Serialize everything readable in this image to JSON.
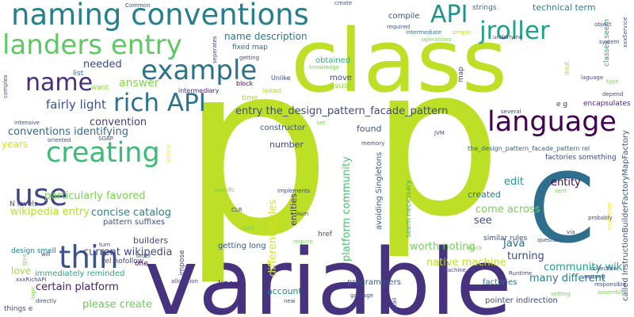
{
  "words": [
    {
      "text": "variable",
      "color": "#46327e"
    },
    {
      "text": "p",
      "color": "#bddf26"
    },
    {
      "text": "p",
      "color": "#bddf26"
    },
    {
      "text": "class",
      "color": "#bddf26"
    },
    {
      "text": "C",
      "color": "#2e6f8e"
    },
    {
      "text": "naming conventions",
      "color": "#277f8e"
    },
    {
      "text": "landers entry",
      "color": "#5ec962"
    },
    {
      "text": "example",
      "color": "#2c728e"
    },
    {
      "text": "name",
      "color": "#472d7b"
    },
    {
      "text": "rich API",
      "color": "#2c728e"
    },
    {
      "text": "creating",
      "color": "#3bbb75"
    },
    {
      "text": "language",
      "color": "#440154"
    },
    {
      "text": "use",
      "color": "#3f4788"
    },
    {
      "text": "thin",
      "color": "#3b528b"
    },
    {
      "text": "API",
      "color": "#21918c"
    },
    {
      "text": "jroller",
      "color": "#1fa088"
    },
    {
      "text": "fairly light",
      "color": "#3b528b"
    },
    {
      "text": "answer",
      "color": "#85d54a"
    },
    {
      "text": "needed",
      "color": "#3e4989"
    },
    {
      "text": "name description",
      "color": "#2a788e"
    },
    {
      "text": "entry the_design_pattern_facade_pattern",
      "color": "#3e4989"
    },
    {
      "text": "conventions identifying",
      "color": "#31688e"
    },
    {
      "text": "convention",
      "color": "#443a83"
    },
    {
      "text": "particularly favored",
      "color": "#7ad151"
    },
    {
      "text": "concise catalog",
      "color": "#25848e"
    },
    {
      "text": "wikipedia entry",
      "color": "#b5de2b"
    },
    {
      "text": "pattern suffixes",
      "color": "#3b528b"
    },
    {
      "text": "current wikipedia",
      "color": "#3e4989"
    },
    {
      "text": "certain platform",
      "color": "#481a6c"
    },
    {
      "text": "immediately reminded",
      "color": "#22a884"
    },
    {
      "text": "please create",
      "color": "#6ccd5a"
    },
    {
      "text": "worth noting",
      "color": "#73d056"
    },
    {
      "text": "community wiki",
      "color": "#1fa188"
    },
    {
      "text": "many different",
      "color": "#2a788e"
    },
    {
      "text": "native machine",
      "color": "#c2df23"
    },
    {
      "text": "platform community",
      "color": "#4ac16d"
    },
    {
      "text": "different styles",
      "color": "#d8e219"
    },
    {
      "text": "come across",
      "color": "#7ad151"
    },
    {
      "text": "turning",
      "color": "#3f4788"
    },
    {
      "text": "Java",
      "color": "#31688e"
    },
    {
      "text": "edit",
      "color": "#1e9b8a"
    },
    {
      "text": "entity",
      "color": "#440154"
    },
    {
      "text": "entities",
      "color": "#482878"
    },
    {
      "text": "see",
      "color": "#3b528b"
    },
    {
      "text": "created",
      "color": "#2a788e"
    },
    {
      "text": "found",
      "color": "#38598c"
    },
    {
      "text": "constructor",
      "color": "#3b528b"
    },
    {
      "text": "number",
      "color": "#3f4788"
    },
    {
      "text": "builders",
      "color": "#3e4989"
    },
    {
      "text": "know",
      "color": "#482878"
    },
    {
      "text": "love",
      "color": "#a8db34"
    },
    {
      "text": "years",
      "color": "#d8e219"
    },
    {
      "text": "account",
      "color": "#277f8e"
    },
    {
      "text": "getting long",
      "color": "#38598c"
    },
    {
      "text": "technical term",
      "color": "#27808e"
    },
    {
      "text": "compile",
      "color": "#3b528b"
    },
    {
      "text": "strings",
      "color": "#2e6e8e"
    },
    {
      "text": "obtained",
      "color": "#2db27d"
    },
    {
      "text": "move",
      "color": "#3f4788"
    },
    {
      "text": "usual",
      "color": "#8fd744"
    },
    {
      "text": "fixed map",
      "color": "#31688e"
    },
    {
      "text": "called InstructionBuilderFactoryMapFactory",
      "color": "#39558c"
    },
    {
      "text": "the_design_pattern_facade_pattern rel",
      "color": "#33638d"
    },
    {
      "text": "factories something",
      "color": "#3e4a89"
    },
    {
      "text": "seem necessary",
      "color": "#35b779"
    },
    {
      "text": "avoiding Singletons",
      "color": "#38598c"
    },
    {
      "text": "similar rules",
      "color": "#3e4989"
    },
    {
      "text": "factories",
      "color": "#2c728e"
    },
    {
      "text": "programmers",
      "color": "#38598c"
    },
    {
      "text": "pointer indirection",
      "color": "#3e4989"
    },
    {
      "text": "design smell",
      "color": "#277f8e"
    },
    {
      "text": "rel nofollow",
      "color": "#3e4989"
    },
    {
      "text": "href",
      "color": "#3e4989"
    },
    {
      "text": "impose",
      "color": "#3e4989"
    },
    {
      "text": "N levels",
      "color": "#3b528b"
    },
    {
      "text": "e g",
      "color": "#472d7b"
    },
    {
      "text": "encapsulates",
      "color": "#482878"
    },
    {
      "text": "classes seem",
      "color": "#1fa088"
    },
    {
      "text": "things e",
      "color": "#3e4989"
    },
    {
      "text": "one",
      "color": "#440154"
    },
    {
      "text": "want",
      "color": "#8fd744"
    },
    {
      "text": "list",
      "color": "#31688e"
    },
    {
      "text": "time",
      "color": "#addc30"
    },
    {
      "text": "map",
      "color": "#3e4989"
    },
    {
      "text": "limit",
      "color": "#a5db36"
    },
    {
      "text": "Unlike",
      "color": "#3e4989"
    },
    {
      "text": "block",
      "color": "#440154"
    },
    {
      "text": "linked",
      "color": "#a5db36"
    },
    {
      "text": "intermediary",
      "color": "#482878"
    },
    {
      "text": "Common",
      "color": "#3b528b"
    },
    {
      "text": "create",
      "color": "#3b528b"
    },
    {
      "text": "required",
      "color": "#3b528b"
    },
    {
      "text": "intermediate",
      "color": "#2c728e"
    },
    {
      "text": "operations",
      "color": "#7ad151"
    },
    {
      "text": "simple",
      "color": "#b5de2b"
    },
    {
      "text": "underlying",
      "color": "#3e4989"
    },
    {
      "text": "object",
      "color": "#3e4989"
    },
    {
      "text": "system",
      "color": "#3e4989"
    },
    {
      "text": "xxxService",
      "color": "#3e4989"
    },
    {
      "text": "seperates",
      "color": "#3e4989"
    },
    {
      "text": "getting",
      "color": "#3e4989"
    },
    {
      "text": "knowledge",
      "color": "#7ad151"
    },
    {
      "text": "depend",
      "color": "#3e4989"
    },
    {
      "text": "type",
      "color": "#7ad151"
    },
    {
      "text": "laguage",
      "color": "#3e4989"
    },
    {
      "text": "complex",
      "color": "#3e4989"
    },
    {
      "text": "xxxHelper",
      "color": "#fde725"
    },
    {
      "text": "xxxRichAPI",
      "color": "#3e4989"
    },
    {
      "text": "intensive",
      "color": "#3e4989"
    },
    {
      "text": "oriented",
      "color": "#3e4989"
    },
    {
      "text": "SOAP",
      "color": "#3e4989"
    },
    {
      "text": "Virtual",
      "color": "#fde725"
    },
    {
      "text": "Asm",
      "color": "#3e4989"
    },
    {
      "text": "CLR",
      "color": "#3e4989"
    },
    {
      "text": "specific",
      "color": "#7ad151"
    },
    {
      "text": "implements",
      "color": "#3e4989"
    },
    {
      "text": "load",
      "color": "#7ad151"
    },
    {
      "text": "require",
      "color": "#7ad151"
    },
    {
      "text": "sent",
      "color": "#7ad151"
    },
    {
      "text": "probably",
      "color": "#3e4989"
    },
    {
      "text": "question",
      "color": "#3e4989"
    },
    {
      "text": "via",
      "color": "#3e4989"
    },
    {
      "text": "Runtime",
      "color": "#3e4989"
    },
    {
      "text": "allocation",
      "color": "#3e4989"
    },
    {
      "text": "order",
      "color": "#3e4989"
    },
    {
      "text": "machine",
      "color": "#3e4989"
    },
    {
      "text": "naming",
      "color": "#3e4989"
    },
    {
      "text": "collection",
      "color": "#3e4989"
    },
    {
      "text": "responsible",
      "color": "#3e4989"
    },
    {
      "text": "setting",
      "color": "#7ad151"
    },
    {
      "text": "assembly",
      "color": "#7ad151"
    },
    {
      "text": "garbage",
      "color": "#3e4989"
    },
    {
      "text": "user",
      "color": "#3e4989"
    },
    {
      "text": "entail",
      "color": "#3e4989"
    },
    {
      "text": "new",
      "color": "#3e4989"
    },
    {
      "text": "directly",
      "color": "#3e4989"
    },
    {
      "text": "logic",
      "color": "#7ad151"
    },
    {
      "text": "give",
      "color": "#7ad151"
    },
    {
      "text": "will",
      "color": "#3e4989"
    },
    {
      "text": "turn",
      "color": "#3e4989"
    },
    {
      "text": "stuck",
      "color": "#7ad151"
    },
    {
      "text": "JVM",
      "color": "#3e4989"
    },
    {
      "text": "memory",
      "color": "#3e4989"
    },
    {
      "text": "several",
      "color": "#3e4989"
    },
    {
      "text": "set",
      "color": "#7ad151"
    }
  ]
}
